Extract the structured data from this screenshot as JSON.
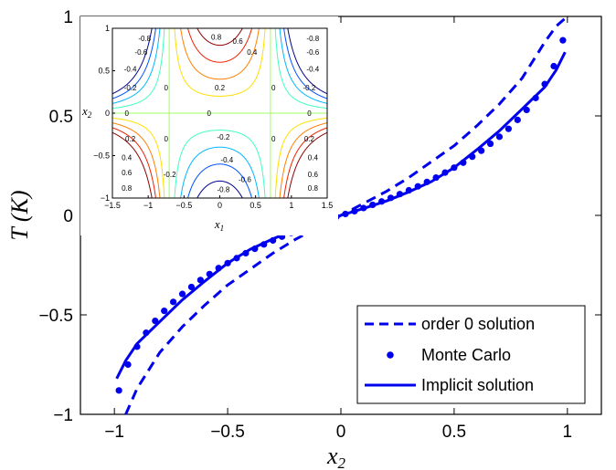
{
  "chart_data": [
    {
      "type": "line",
      "xlabel": "x",
      "xlabel_sub": "2",
      "ylabel": "T (K)",
      "xlim": [
        -1.15,
        1.15
      ],
      "ylim": [
        -1,
        1
      ],
      "xticks": [
        -1,
        -0.5,
        0,
        0.5,
        1
      ],
      "xtick_labels": [
        "−1",
        "−0.5",
        "0",
        "0.5",
        "1"
      ],
      "yticks": [
        -1,
        -0.5,
        0,
        0.5,
        1
      ],
      "ytick_labels": [
        "−1",
        "−0.5",
        "0",
        "0.5",
        "1"
      ],
      "legend_position": "bottom-right",
      "series": [
        {
          "name": "order 0 solution",
          "style": "dashed",
          "color": "#0000ee",
          "x": [
            -0.95,
            -0.9,
            -0.8,
            -0.7,
            -0.6,
            -0.5,
            -0.4,
            -0.3,
            -0.2,
            -0.1,
            0,
            0.1,
            0.2,
            0.3,
            0.4,
            0.5,
            0.6,
            0.7,
            0.8,
            0.9,
            0.95,
            1.0
          ],
          "y": [
            -1.0,
            -0.87,
            -0.69,
            -0.56,
            -0.45,
            -0.35,
            -0.27,
            -0.19,
            -0.12,
            -0.06,
            0,
            0.06,
            0.12,
            0.19,
            0.27,
            0.35,
            0.45,
            0.56,
            0.69,
            0.87,
            0.95,
            1.0
          ]
        },
        {
          "name": "Monte Carlo",
          "style": "markers",
          "color": "#0000ee",
          "x": [
            -0.98,
            -0.94,
            -0.9,
            -0.86,
            -0.82,
            -0.78,
            -0.74,
            -0.7,
            -0.66,
            -0.62,
            -0.58,
            -0.54,
            -0.5,
            -0.46,
            -0.42,
            -0.38,
            -0.34,
            -0.3,
            -0.26,
            -0.22,
            -0.18,
            -0.14,
            -0.1,
            -0.06,
            -0.02,
            0.02,
            0.06,
            0.1,
            0.14,
            0.18,
            0.22,
            0.26,
            0.3,
            0.34,
            0.38,
            0.42,
            0.46,
            0.5,
            0.54,
            0.58,
            0.62,
            0.66,
            0.7,
            0.74,
            0.78,
            0.82,
            0.86,
            0.9,
            0.94,
            0.98
          ],
          "y": [
            -0.88,
            -0.75,
            -0.66,
            -0.59,
            -0.53,
            -0.48,
            -0.435,
            -0.395,
            -0.36,
            -0.325,
            -0.295,
            -0.265,
            -0.24,
            -0.215,
            -0.19,
            -0.168,
            -0.146,
            -0.126,
            -0.107,
            -0.088,
            -0.07,
            -0.053,
            -0.037,
            -0.021,
            -0.007,
            0.007,
            0.021,
            0.037,
            0.053,
            0.07,
            0.088,
            0.107,
            0.126,
            0.146,
            0.168,
            0.19,
            0.215,
            0.24,
            0.265,
            0.295,
            0.325,
            0.36,
            0.395,
            0.435,
            0.48,
            0.53,
            0.59,
            0.66,
            0.75,
            0.88
          ]
        },
        {
          "name": "Implicit solution",
          "style": "solid",
          "color": "#0000ee",
          "x": [
            -0.99,
            -0.95,
            -0.9,
            -0.8,
            -0.7,
            -0.6,
            -0.5,
            -0.4,
            -0.3,
            -0.2,
            -0.1,
            0,
            0.1,
            0.2,
            0.3,
            0.4,
            0.5,
            0.6,
            0.7,
            0.8,
            0.9,
            0.95,
            0.99
          ],
          "y": [
            -0.82,
            -0.73,
            -0.645,
            -0.535,
            -0.425,
            -0.33,
            -0.24,
            -0.17,
            -0.118,
            -0.072,
            -0.035,
            0,
            0.035,
            0.072,
            0.118,
            0.17,
            0.24,
            0.33,
            0.425,
            0.535,
            0.645,
            0.73,
            0.82
          ]
        }
      ]
    },
    {
      "type": "contour",
      "xlabel": "x",
      "xlabel_sub": "1",
      "ylabel": "x",
      "ylabel_sub": "2",
      "xlim": [
        -1.5,
        1.5
      ],
      "ylim": [
        -1,
        1
      ],
      "xticks": [
        -1.5,
        -1,
        -0.5,
        0,
        0.5,
        1,
        1.5
      ],
      "xtick_labels": [
        "−1.5",
        "−1",
        "−0.5",
        "0",
        "0.5",
        "1",
        "1.5"
      ],
      "yticks": [
        -1,
        -0.5,
        0,
        0.5,
        1
      ],
      "ytick_labels": [
        "−1",
        "−0.5",
        "0",
        "0.5",
        "1"
      ],
      "function": "x2*(1 - 2*x1^2)",
      "levels": [
        -0.8,
        -0.6,
        -0.4,
        -0.2,
        0,
        0.2,
        0.4,
        0.6,
        0.8
      ],
      "level_colors": [
        "#00008f",
        "#0050ff",
        "#00b8ff",
        "#40ffbf",
        "#9fff60",
        "#ffdf00",
        "#ff8000",
        "#ef2000",
        "#8f0000"
      ],
      "labels": [
        {
          "text": "-0.8",
          "x": -1.05,
          "y": 0.88
        },
        {
          "text": "-0.6",
          "x": -1.1,
          "y": 0.72
        },
        {
          "text": "-0.4",
          "x": -1.25,
          "y": 0.52
        },
        {
          "text": "-0.2",
          "x": -1.25,
          "y": 0.3
        },
        {
          "text": "0.2",
          "x": 0.0,
          "y": 0.3
        },
        {
          "text": "0.4",
          "x": 0.45,
          "y": 0.72
        },
        {
          "text": "0.6",
          "x": 0.25,
          "y": 0.85
        },
        {
          "text": "0.8",
          "x": -0.05,
          "y": 0.9
        },
        {
          "text": "-0.8",
          "x": 1.3,
          "y": 0.88
        },
        {
          "text": "-0.6",
          "x": 1.3,
          "y": 0.72
        },
        {
          "text": "-0.4",
          "x": 1.3,
          "y": 0.52
        },
        {
          "text": "-0.2",
          "x": 1.25,
          "y": 0.3
        },
        {
          "text": "0",
          "x": -0.75,
          "y": 0.3
        },
        {
          "text": "0",
          "x": 0.75,
          "y": 0.3
        },
        {
          "text": "0",
          "x": -1.3,
          "y": 0.0
        },
        {
          "text": "0",
          "x": -0.15,
          "y": 0.0
        },
        {
          "text": "0",
          "x": 1.25,
          "y": 0.0
        },
        {
          "text": "0",
          "x": -0.75,
          "y": -0.3
        },
        {
          "text": "0",
          "x": 0.75,
          "y": -0.3
        },
        {
          "text": "-0.2",
          "x": 0.05,
          "y": -0.28
        },
        {
          "text": "0.2",
          "x": -1.25,
          "y": -0.3
        },
        {
          "text": "0.4",
          "x": -1.3,
          "y": -0.52
        },
        {
          "text": "0.6",
          "x": -1.3,
          "y": -0.7
        },
        {
          "text": "0.8",
          "x": -1.3,
          "y": -0.88
        },
        {
          "text": "-0.2",
          "x": -0.7,
          "y": -0.72
        },
        {
          "text": "-0.4",
          "x": 0.1,
          "y": -0.55
        },
        {
          "text": "-0.6",
          "x": 0.35,
          "y": -0.78
        },
        {
          "text": "-0.8",
          "x": 0.05,
          "y": -0.9
        },
        {
          "text": "0.2",
          "x": 1.25,
          "y": -0.3
        },
        {
          "text": "0.4",
          "x": 1.3,
          "y": -0.52
        },
        {
          "text": "0.6",
          "x": 1.3,
          "y": -0.72
        },
        {
          "text": "0.8",
          "x": 1.3,
          "y": -0.88
        }
      ]
    }
  ]
}
